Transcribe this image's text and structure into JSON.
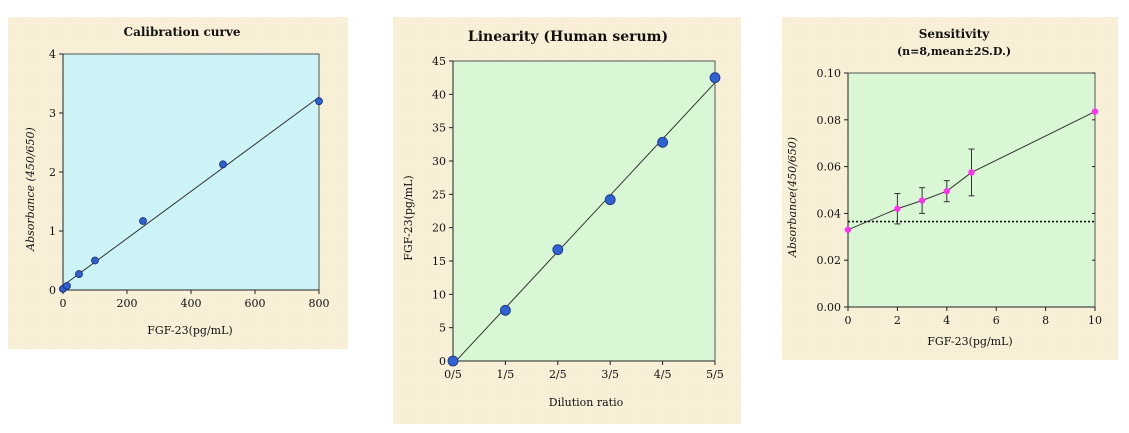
{
  "colors": {
    "panel_background": "#faf1da",
    "calibration_plot_background": "#ccf3f6",
    "linearity_plot_background": "#d9f6d5",
    "sensitivity_plot_background": "#d9f6d5",
    "calibration_marker": "#2e5ecf",
    "linearity_marker": "#2f63d4",
    "sensitivity_marker": "#ff33ee",
    "line": "#333333"
  },
  "chart_data": [
    {
      "type": "line",
      "title": "Calibration curve",
      "xlabel": "FGF-23(pg/mL)",
      "ylabel": "Absorbance (450/650)",
      "xlim": [
        0,
        800
      ],
      "ylim": [
        0,
        4
      ],
      "xticks": [
        "0",
        "200",
        "400",
        "600",
        "800"
      ],
      "yticks": [
        "0",
        "1",
        "2",
        "3",
        "4"
      ],
      "grid": false,
      "x": [
        0,
        12.5,
        50,
        100,
        250,
        500,
        800
      ],
      "y": [
        0.02,
        0.07,
        0.27,
        0.5,
        1.17,
        2.13,
        3.2
      ],
      "fit_line": true
    },
    {
      "type": "line",
      "title": "Linearity (Human serum)",
      "xlabel": "Dilution ratio",
      "ylabel": "FGF-23(pg/mL)",
      "xlim": [
        0,
        5
      ],
      "ylim": [
        0,
        45
      ],
      "xticks": [
        "0/5",
        "1/5",
        "2/5",
        "3/5",
        "4/5",
        "5/5"
      ],
      "yticks": [
        "0",
        "5",
        "10",
        "15",
        "20",
        "25",
        "30",
        "35",
        "40",
        "45"
      ],
      "grid": false,
      "categories": [
        "0/5",
        "1/5",
        "2/5",
        "3/5",
        "4/5",
        "5/5"
      ],
      "values": [
        0,
        7.6,
        16.7,
        24.2,
        32.8,
        42.5
      ],
      "fit_line": true
    },
    {
      "type": "line",
      "title": "Sensitivity",
      "subtitle": "(n=8,mean±2S.D.)",
      "xlabel": "FGF-23(pg/mL)",
      "ylabel": "Absorbance(450/650)",
      "xlim": [
        0,
        10
      ],
      "ylim": [
        0,
        0.1
      ],
      "xticks": [
        "0",
        "2",
        "4",
        "6",
        "8",
        "10"
      ],
      "yticks": [
        "0.00",
        "0.02",
        "0.04",
        "0.06",
        "0.08",
        "0.10"
      ],
      "grid": false,
      "x": [
        0,
        2,
        3,
        4,
        5,
        10
      ],
      "y": [
        0.033,
        0.042,
        0.0455,
        0.0495,
        0.0575,
        0.0835
      ],
      "error": [
        0,
        0.0065,
        0.0055,
        0.0045,
        0.01,
        0
      ],
      "reference_line_y": 0.0365
    }
  ]
}
